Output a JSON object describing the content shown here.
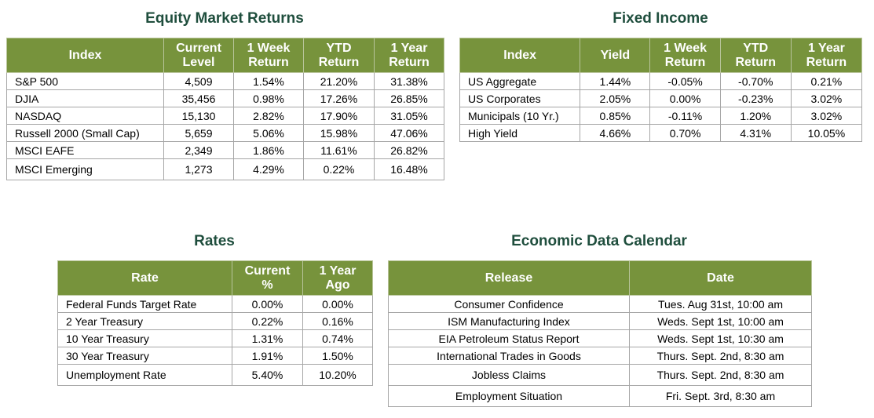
{
  "equity": {
    "title": "Equity Market Returns",
    "headers": [
      [
        "Index",
        ""
      ],
      [
        "Current",
        "Level"
      ],
      [
        "1 Week",
        "Return"
      ],
      [
        "YTD",
        "Return"
      ],
      [
        "1 Year",
        "Return"
      ]
    ],
    "rows": [
      [
        "S&P 500",
        "4,509",
        "1.54%",
        "21.20%",
        "31.38%"
      ],
      [
        "DJIA",
        "35,456",
        "0.98%",
        "17.26%",
        "26.85%"
      ],
      [
        "NASDAQ",
        "15,130",
        "2.82%",
        "17.90%",
        "31.05%"
      ],
      [
        "Russell 2000 (Small Cap)",
        "5,659",
        "5.06%",
        "15.98%",
        "47.06%"
      ],
      [
        "MSCI EAFE",
        "2,349",
        "1.86%",
        "11.61%",
        "26.82%"
      ],
      [
        "MSCI Emerging",
        "1,273",
        "4.29%",
        "0.22%",
        "16.48%"
      ]
    ]
  },
  "fixed_income": {
    "title": "Fixed Income",
    "headers": [
      [
        "Index",
        ""
      ],
      [
        "Yield",
        ""
      ],
      [
        "1 Week",
        "Return"
      ],
      [
        "YTD",
        "Return"
      ],
      [
        "1 Year",
        "Return"
      ]
    ],
    "rows": [
      [
        "US Aggregate",
        "1.44%",
        "-0.05%",
        "-0.70%",
        "0.21%"
      ],
      [
        "US Corporates",
        "2.05%",
        "0.00%",
        "-0.23%",
        "3.02%"
      ],
      [
        "Municipals (10 Yr.)",
        "0.85%",
        "-0.11%",
        "1.20%",
        "3.02%"
      ],
      [
        "High Yield",
        "4.66%",
        "0.70%",
        "4.31%",
        "10.05%"
      ]
    ]
  },
  "rates": {
    "title": "Rates",
    "headers": [
      [
        "Rate",
        ""
      ],
      [
        "Current",
        "%"
      ],
      [
        "1 Year",
        "Ago"
      ]
    ],
    "rows": [
      [
        "Federal Funds Target Rate",
        "0.00%",
        "0.00%"
      ],
      [
        "2 Year Treasury",
        "0.22%",
        "0.16%"
      ],
      [
        "10 Year Treasury",
        "1.31%",
        "0.74%"
      ],
      [
        "30 Year Treasury",
        "1.91%",
        "1.50%"
      ],
      [
        "Unemployment Rate",
        "5.40%",
        "10.20%"
      ]
    ]
  },
  "calendar": {
    "title": "Economic Data Calendar",
    "headers": [
      [
        "Release",
        ""
      ],
      [
        "Date",
        ""
      ]
    ],
    "rows": [
      [
        "Consumer Confidence",
        "Tues. Aug 31st, 10:00 am"
      ],
      [
        "ISM Manufacturing Index",
        "Weds. Sept 1st, 10:00 am"
      ],
      [
        "EIA Petroleum Status Report",
        "Weds. Sept 1st, 10:30 am"
      ],
      [
        "International Trades in Goods",
        "Thurs. Sept. 2nd, 8:30 am"
      ],
      [
        "Jobless Claims",
        "Thurs. Sept. 2nd, 8:30 am"
      ],
      [
        "Employment Situation",
        "Fri. Sept. 3rd, 8:30 am"
      ]
    ]
  },
  "colors": {
    "header_background": "#77933c",
    "header_text": "#ffffff",
    "title_text": "#1f4e3d",
    "border": "#a6a6a6"
  }
}
